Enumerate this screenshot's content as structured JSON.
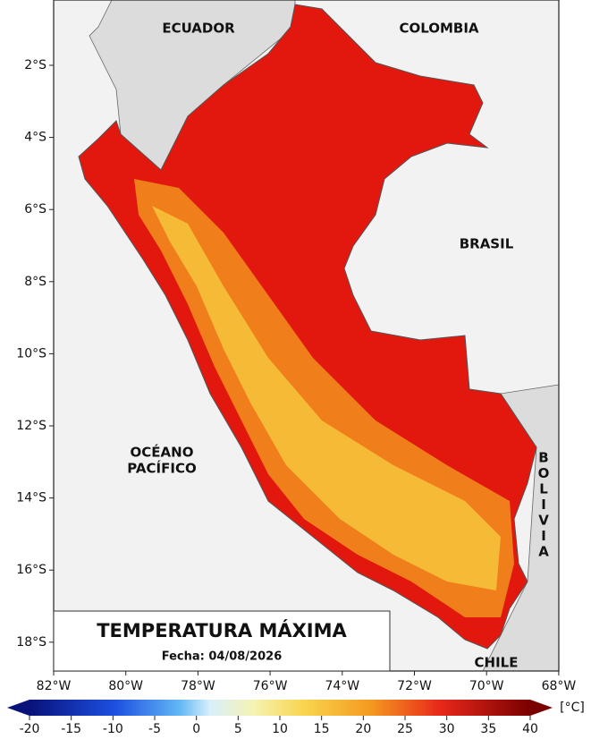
{
  "map": {
    "title": "TEMPERATURA MÁXIMA",
    "date": "Fecha: 04/08/2026",
    "countries": [
      "ECUADOR",
      "COLOMBIA",
      "BRASIL",
      "CHILE"
    ],
    "bolivia_letters": [
      "B",
      "O",
      "L",
      "I",
      "V",
      "I",
      "A"
    ],
    "ocean": [
      "OCÉANO",
      "PACÍFICO"
    ],
    "lat_ticks": [
      "2°S",
      "4°S",
      "6°S",
      "8°S",
      "10°S",
      "12°S",
      "14°S",
      "16°S",
      "18°S"
    ],
    "lon_ticks": [
      "82°W",
      "80°W",
      "78°W",
      "76°W",
      "74°W",
      "72°W",
      "70°W",
      "68°W"
    ],
    "colorbar": {
      "unit": "[°C]",
      "ticks": [
        -20,
        -15,
        -10,
        -5,
        0,
        5,
        10,
        15,
        20,
        25,
        30,
        35,
        40
      ]
    }
  }
}
